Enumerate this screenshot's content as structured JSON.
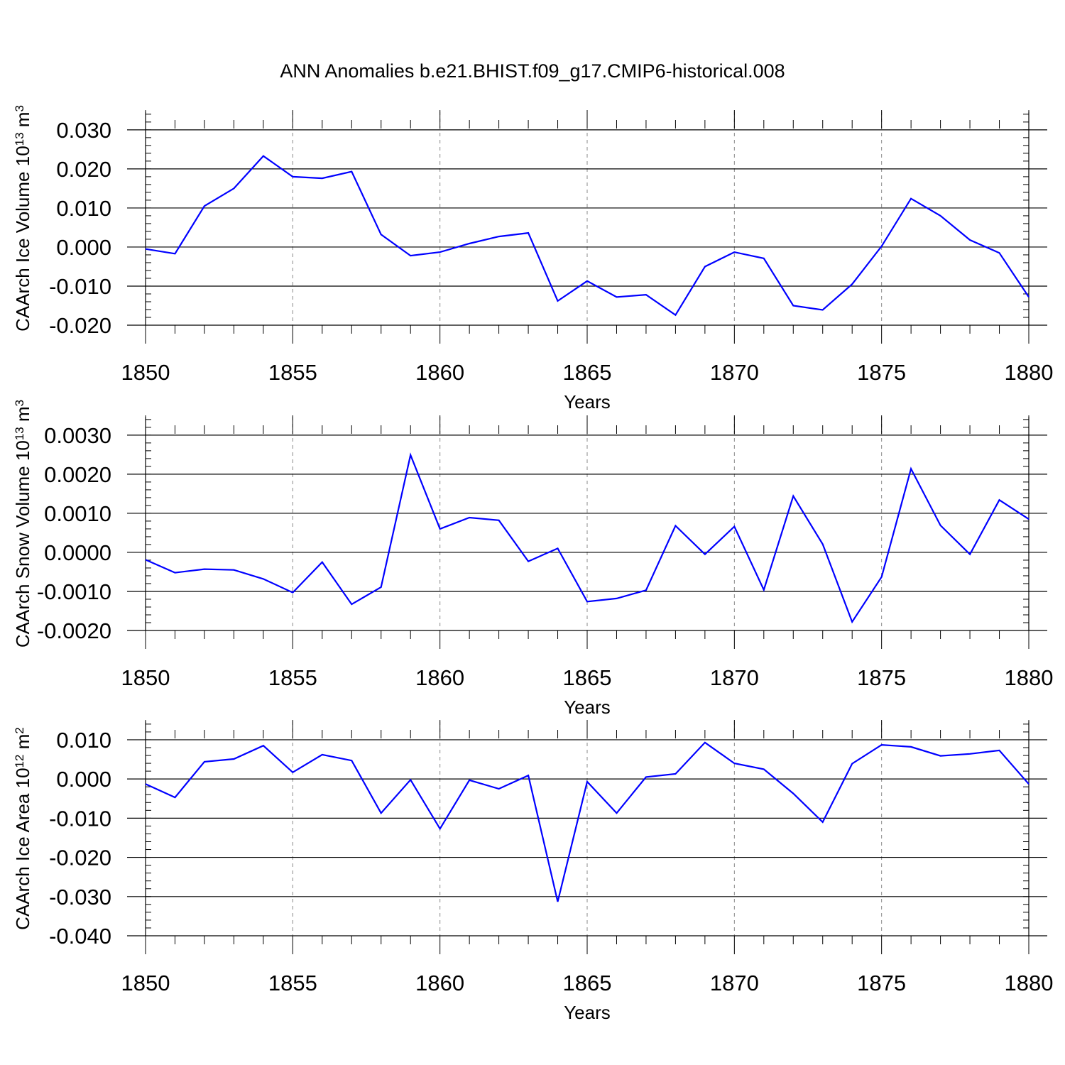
{
  "figure_title": "ANN Anomalies b.e21.BHIST.f09_g17.CMIP6-historical.008",
  "colors": {
    "series": "#0000ff",
    "axis": "#000000",
    "grid": "#888888"
  },
  "chart_data": [
    {
      "type": "line",
      "ylabel": "CAArch Ice Volume 10",
      "ylabel_exp": "13",
      "ylabel_unit": " m",
      "ylabel_unit_exp": "3",
      "xlabel": "Years",
      "xlim": [
        1850,
        1880
      ],
      "ylim": [
        -0.02,
        0.0347
      ],
      "ytick_values": [
        -0.02,
        -0.01,
        0.0,
        0.01,
        0.02,
        0.03
      ],
      "ytick_labels": [
        "-0.020",
        "-0.010",
        "0.000",
        "0.010",
        "0.020",
        "0.030"
      ],
      "xtick_values": [
        1850,
        1855,
        1860,
        1865,
        1870,
        1875,
        1880
      ],
      "xtick_labels": [
        "1850",
        "1855",
        "1860",
        "1865",
        "1870",
        "1875",
        "1880"
      ],
      "x": [
        1850,
        1851,
        1852,
        1853,
        1854,
        1855,
        1856,
        1857,
        1858,
        1859,
        1860,
        1861,
        1862,
        1863,
        1864,
        1865,
        1866,
        1867,
        1868,
        1869,
        1870,
        1871,
        1872,
        1873,
        1874,
        1875,
        1876,
        1877,
        1878,
        1879,
        1880
      ],
      "values": [
        -0.0005,
        -0.0017,
        0.0105,
        0.015,
        0.0233,
        0.018,
        0.0176,
        0.0193,
        0.0032,
        -0.0022,
        -0.0013,
        0.0009,
        0.0027,
        0.0036,
        -0.0138,
        -0.0087,
        -0.0128,
        -0.0122,
        -0.0174,
        -0.005,
        -0.0013,
        -0.0029,
        -0.015,
        -0.0161,
        -0.0095,
        0.0002,
        0.0124,
        0.008,
        0.0018,
        -0.0015,
        -0.0128
      ]
    },
    {
      "type": "line",
      "ylabel": "CAArch Snow Volume 10",
      "ylabel_exp": "13",
      "ylabel_unit": " m",
      "ylabel_unit_exp": "3",
      "xlabel": "Years",
      "xlim": [
        1850,
        1880
      ],
      "ylim": [
        -0.002,
        0.00347
      ],
      "ytick_values": [
        -0.002,
        -0.001,
        0.0,
        0.001,
        0.002,
        0.003
      ],
      "ytick_labels": [
        "-0.0020",
        "-0.0010",
        "0.0000",
        "0.0010",
        "0.0020",
        "0.0030"
      ],
      "xtick_values": [
        1850,
        1855,
        1860,
        1865,
        1870,
        1875,
        1880
      ],
      "xtick_labels": [
        "1850",
        "1855",
        "1860",
        "1865",
        "1870",
        "1875",
        "1880"
      ],
      "x": [
        1850,
        1851,
        1852,
        1853,
        1854,
        1855,
        1856,
        1857,
        1858,
        1859,
        1860,
        1861,
        1862,
        1863,
        1864,
        1865,
        1866,
        1867,
        1868,
        1869,
        1870,
        1871,
        1872,
        1873,
        1874,
        1875,
        1876,
        1877,
        1878,
        1879,
        1880
      ],
      "values": [
        -0.00019,
        -0.00052,
        -0.00043,
        -0.00045,
        -0.00068,
        -0.00103,
        -0.00025,
        -0.00133,
        -0.00089,
        0.00249,
        0.0006,
        0.00089,
        0.00082,
        -0.00023,
        0.0001,
        -0.00126,
        -0.00118,
        -0.00097,
        0.00068,
        -5e-05,
        0.00066,
        -0.00096,
        0.00144,
        0.00021,
        -0.00178,
        -0.00063,
        0.00214,
        0.00069,
        -5e-05,
        0.00134,
        0.00085
      ]
    },
    {
      "type": "line",
      "ylabel": "CAArch Ice Area 10",
      "ylabel_exp": "12",
      "ylabel_unit": " m",
      "ylabel_unit_exp": "2",
      "xlabel": "Years",
      "xlim": [
        1850,
        1880
      ],
      "ylim": [
        -0.04,
        0.0147
      ],
      "ytick_values": [
        -0.04,
        -0.03,
        -0.02,
        -0.01,
        0.0,
        0.01
      ],
      "ytick_labels": [
        "-0.040",
        "-0.030",
        "-0.020",
        "-0.010",
        "0.000",
        "0.010"
      ],
      "xtick_values": [
        1850,
        1855,
        1860,
        1865,
        1870,
        1875,
        1880
      ],
      "xtick_labels": [
        "1850",
        "1855",
        "1860",
        "1865",
        "1870",
        "1875",
        "1880"
      ],
      "x": [
        1850,
        1851,
        1852,
        1853,
        1854,
        1855,
        1856,
        1857,
        1858,
        1859,
        1860,
        1861,
        1862,
        1863,
        1864,
        1865,
        1866,
        1867,
        1868,
        1869,
        1870,
        1871,
        1872,
        1873,
        1874,
        1875,
        1876,
        1877,
        1878,
        1879,
        1880
      ],
      "values": [
        -0.0013,
        -0.0047,
        0.0044,
        0.0051,
        0.0085,
        0.0017,
        0.0062,
        0.0047,
        -0.0087,
        -0.0002,
        -0.0127,
        -0.0003,
        -0.0025,
        0.0009,
        -0.0313,
        -0.0007,
        -0.0087,
        0.0005,
        0.0013,
        0.0093,
        0.004,
        0.0025,
        -0.0037,
        -0.011,
        0.0039,
        0.0087,
        0.0082,
        0.0059,
        0.0064,
        0.0073,
        -0.0013
      ]
    }
  ]
}
